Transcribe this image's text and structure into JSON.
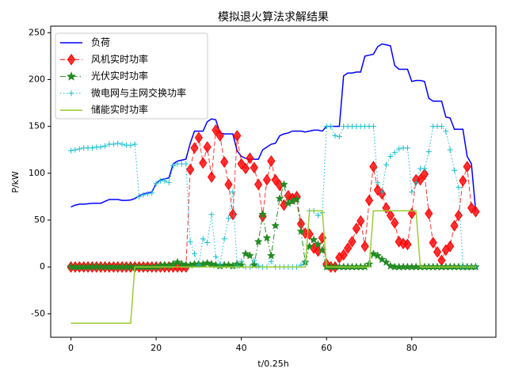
{
  "chart_data": {
    "type": "line",
    "title": "模拟退火算法求解结果",
    "xlabel": "t/0.25h",
    "ylabel": "P/kW",
    "x": [
      0,
      1,
      2,
      3,
      4,
      5,
      6,
      7,
      8,
      9,
      10,
      11,
      12,
      13,
      14,
      15,
      16,
      17,
      18,
      19,
      20,
      21,
      22,
      23,
      24,
      25,
      26,
      27,
      28,
      29,
      30,
      31,
      32,
      33,
      34,
      35,
      36,
      37,
      38,
      39,
      40,
      41,
      42,
      43,
      44,
      45,
      46,
      47,
      48,
      49,
      50,
      51,
      52,
      53,
      54,
      55,
      56,
      57,
      58,
      59,
      60,
      61,
      62,
      63,
      64,
      65,
      66,
      67,
      68,
      69,
      70,
      71,
      72,
      73,
      74,
      75,
      76,
      77,
      78,
      79,
      80,
      81,
      82,
      83,
      84,
      85,
      86,
      87,
      88,
      89,
      90,
      91,
      92,
      93,
      94,
      95
    ],
    "series": [
      {
        "name": "负荷",
        "color": "#0000ff",
        "linestyle": "solid",
        "marker": "none",
        "values": [
          64,
          66,
          67,
          67,
          67.5,
          68,
          68,
          68,
          70,
          72,
          72,
          72,
          71,
          71,
          71.5,
          73,
          76,
          78,
          79,
          80,
          89,
          93,
          94,
          95,
          110,
          113,
          114,
          115,
          132,
          145,
          145,
          145,
          155,
          158,
          157,
          143,
          142,
          142,
          142,
          124,
          118,
          116,
          115,
          115,
          115,
          125,
          128,
          131,
          132,
          140,
          142,
          143,
          145,
          145,
          145,
          144,
          145,
          146,
          146,
          145,
          150,
          150,
          150,
          150,
          204,
          207,
          207,
          208,
          208,
          225,
          226,
          227,
          235,
          238,
          237,
          236,
          215,
          211,
          211,
          211,
          198,
          199,
          199,
          198,
          180,
          177,
          177,
          177,
          160,
          159,
          147,
          147,
          147,
          118,
          110,
          60
        ]
      },
      {
        "name": "风机实时功率",
        "color": "#ff0000",
        "linestyle": "dashed",
        "marker": "diamond",
        "values": [
          0,
          0,
          0,
          0,
          0,
          0,
          0,
          0,
          0,
          0,
          0,
          0,
          0,
          0,
          0,
          0,
          0,
          0,
          0,
          0,
          0,
          0,
          0,
          0,
          0,
          0,
          0,
          0,
          104,
          127,
          138,
          111,
          128,
          96,
          146,
          140,
          112,
          88,
          56,
          140,
          110,
          105,
          116,
          106,
          88,
          54,
          93,
          113,
          93,
          87,
          66,
          76,
          73,
          75,
          46,
          36,
          35,
          20,
          17,
          31,
          3,
          0,
          0,
          10,
          13,
          20,
          27,
          41,
          49,
          22,
          71,
          107,
          82,
          78,
          63,
          55,
          47,
          27,
          25,
          24,
          57,
          93,
          93,
          99,
          57,
          26,
          16,
          7,
          18,
          22,
          44,
          55,
          92,
          107,
          63,
          59
        ]
      },
      {
        "name": "光伏实时功率",
        "color": "#228b22",
        "linestyle": "dashdot",
        "marker": "star",
        "values": [
          0,
          0,
          0,
          0,
          0,
          0,
          0,
          0,
          0,
          0,
          0,
          0,
          0,
          0,
          0,
          0,
          0,
          0,
          0,
          0,
          0,
          1,
          2,
          1,
          3,
          5,
          3,
          2,
          2,
          3,
          3,
          3,
          4,
          3,
          2,
          1,
          2,
          2,
          1,
          3,
          2,
          14,
          12,
          2,
          27,
          56,
          31,
          12,
          44,
          73,
          88,
          68,
          70,
          72,
          38,
          5,
          22,
          29,
          24,
          18,
          0,
          0,
          0,
          0,
          0,
          0,
          0,
          0,
          0,
          0,
          3,
          14,
          12,
          8,
          5,
          1,
          0,
          0,
          0,
          0,
          0,
          0,
          0,
          0,
          0,
          0,
          0,
          0,
          0,
          0,
          0,
          0,
          0,
          0,
          0,
          0
        ]
      },
      {
        "name": "微电网与主网交换功率",
        "color": "#17becf",
        "linestyle": "dotted",
        "marker": "plus",
        "values": [
          124,
          125,
          126,
          127,
          127,
          127,
          128,
          128,
          129,
          131,
          131,
          132,
          131,
          130,
          130,
          131,
          75,
          77,
          78,
          79,
          89,
          92,
          92,
          90,
          108,
          110,
          110,
          110,
          27,
          14,
          2,
          30,
          26,
          56,
          11,
          3,
          30,
          52,
          80,
          1,
          6,
          0,
          0,
          7,
          1,
          0,
          0,
          6,
          0,
          0,
          0,
          0,
          0,
          0,
          2,
          5,
          60,
          60,
          55,
          58,
          150,
          150,
          140,
          139,
          150,
          150,
          150,
          150,
          150,
          150,
          150,
          150,
          90,
          80,
          109,
          118,
          122,
          126,
          127,
          127,
          80,
          90,
          105,
          105,
          123,
          150,
          150,
          150,
          145,
          125,
          103,
          85,
          0,
          0,
          0,
          0
        ]
      },
      {
        "name": "储能实时功率",
        "color": "#9acd32",
        "linestyle": "solid",
        "marker": "none",
        "values": [
          -60,
          -60,
          -60,
          -60,
          -60,
          -60,
          -60,
          -60,
          -60,
          -60,
          -60,
          -60,
          -60,
          -60,
          -60,
          0,
          0,
          0,
          0,
          0,
          0,
          0,
          0,
          0,
          0,
          0,
          0,
          0,
          0,
          0,
          0,
          0,
          0,
          0,
          0,
          0,
          0,
          0,
          0,
          0,
          0,
          0,
          0,
          0,
          0,
          0,
          0,
          0,
          0,
          0,
          0,
          0,
          0,
          0,
          0,
          0,
          60,
          60,
          60,
          60,
          0,
          0,
          0,
          0,
          0,
          0,
          0,
          0,
          0,
          0,
          0,
          60,
          60,
          60,
          60,
          60,
          60,
          60,
          60,
          60,
          60,
          60,
          0,
          0,
          0,
          0,
          0,
          0,
          0,
          0,
          0,
          0,
          0,
          0,
          0,
          0
        ]
      }
    ],
    "xlim": [
      -4.75,
      99.75
    ],
    "ylim": [
      -75,
      257
    ],
    "xticks": [
      0,
      20,
      40,
      60,
      80
    ],
    "yticks": [
      -50,
      0,
      50,
      100,
      150,
      200,
      250
    ],
    "legend": "upper left"
  }
}
